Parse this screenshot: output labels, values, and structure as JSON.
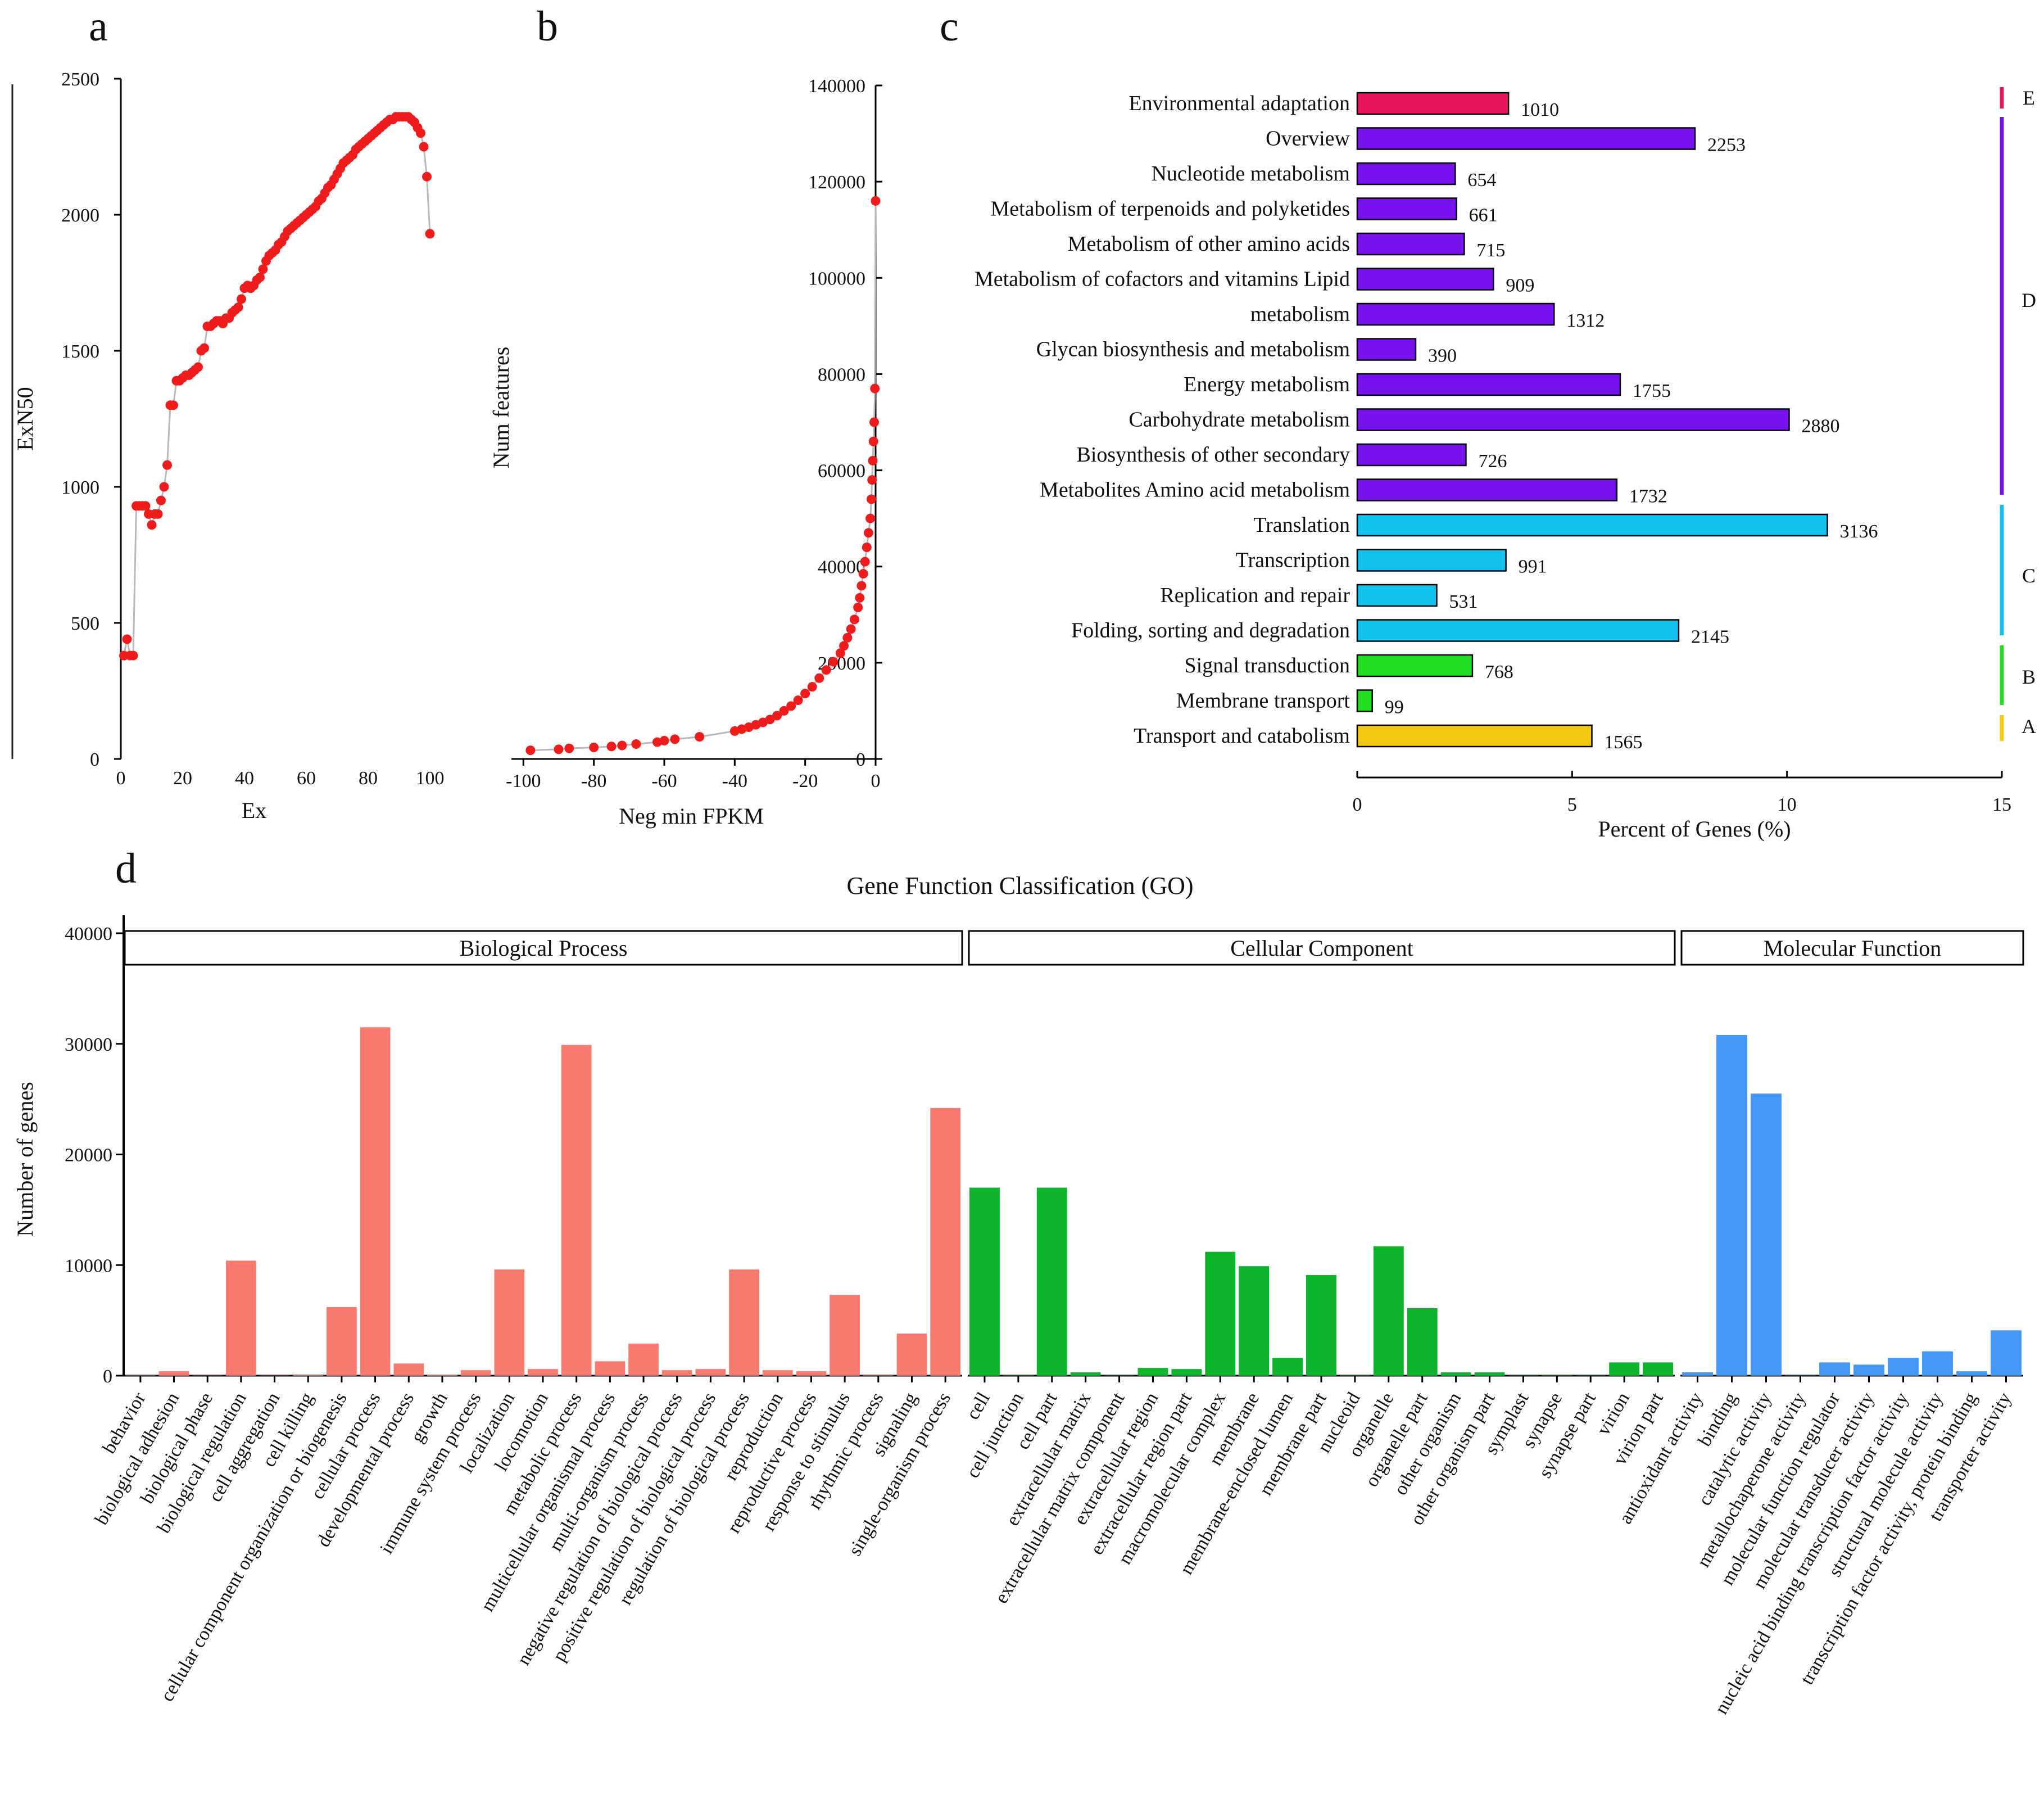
{
  "colors": {
    "red_point": "#ee1c1c",
    "curve_line": "#b9b9b9",
    "axis": "#000000",
    "cat_E": "#e8155f",
    "cat_D": "#7711ee",
    "cat_C": "#11c2ee",
    "cat_B": "#22dd22",
    "cat_A": "#f3c811",
    "go_bp": "#f87a6e",
    "go_cc": "#0db52a",
    "go_mf": "#4498f5"
  },
  "panels": {
    "a": "a",
    "b": "b",
    "c": "c",
    "d": "d"
  },
  "chart_data": [
    {
      "id": "a",
      "type": "scatter",
      "title": "",
      "xlabel": "Ex",
      "ylabel": "ExN50",
      "xlim": [
        0,
        100
      ],
      "ylim": [
        0,
        2500
      ],
      "xticks": [
        0,
        20,
        40,
        60,
        80,
        100
      ],
      "yticks": [
        0,
        500,
        1000,
        1500,
        2000,
        2500
      ],
      "x": [
        1,
        2,
        3,
        4,
        5,
        6,
        7,
        8,
        9,
        10,
        11,
        12,
        13,
        14,
        15,
        16,
        17,
        18,
        19,
        20,
        21,
        22,
        23,
        24,
        25,
        26,
        27,
        28,
        29,
        30,
        31,
        32,
        33,
        34,
        35,
        36,
        37,
        38,
        39,
        40,
        41,
        42,
        43,
        44,
        45,
        46,
        47,
        48,
        49,
        50,
        51,
        52,
        53,
        54,
        55,
        56,
        57,
        58,
        59,
        60,
        61,
        62,
        63,
        64,
        65,
        66,
        67,
        68,
        69,
        70,
        71,
        72,
        73,
        74,
        75,
        76,
        77,
        78,
        79,
        80,
        81,
        82,
        83,
        84,
        85,
        86,
        87,
        88,
        89,
        90,
        91,
        92,
        93,
        94,
        95,
        96,
        97,
        98,
        99,
        100
      ],
      "y": [
        380,
        440,
        380,
        380,
        930,
        930,
        930,
        930,
        900,
        860,
        900,
        900,
        950,
        1000,
        1080,
        1300,
        1300,
        1390,
        1390,
        1400,
        1410,
        1410,
        1420,
        1430,
        1440,
        1500,
        1510,
        1590,
        1590,
        1600,
        1610,
        1610,
        1600,
        1620,
        1620,
        1640,
        1650,
        1660,
        1690,
        1730,
        1740,
        1730,
        1740,
        1760,
        1770,
        1800,
        1830,
        1850,
        1860,
        1870,
        1890,
        1900,
        1920,
        1940,
        1950,
        1960,
        1970,
        1980,
        1990,
        2000,
        2010,
        2020,
        2030,
        2050,
        2060,
        2080,
        2100,
        2110,
        2130,
        2150,
        2170,
        2190,
        2200,
        2210,
        2220,
        2240,
        2250,
        2260,
        2270,
        2280,
        2290,
        2300,
        2310,
        2320,
        2330,
        2340,
        2350,
        2350,
        2360,
        2360,
        2360,
        2360,
        2360,
        2350,
        2340,
        2320,
        2300,
        2250,
        2140,
        1930
      ]
    },
    {
      "id": "b",
      "type": "scatter",
      "title": "",
      "xlabel": "Neg min FPKM",
      "ylabel": "Num features",
      "xlim": [
        -105,
        0
      ],
      "ylim": [
        0,
        140000
      ],
      "xticks": [
        -100,
        -80,
        -60,
        -40,
        -20,
        0
      ],
      "yticks": [
        0,
        20000,
        40000,
        60000,
        80000,
        100000,
        120000,
        140000
      ],
      "x": [
        -98,
        -90,
        -87,
        -80,
        -75,
        -72,
        -68,
        -62,
        -60,
        -57,
        -50,
        -40,
        -38,
        -36,
        -34,
        -32,
        -30,
        -28,
        -26,
        -24,
        -22,
        -20,
        -18,
        -16,
        -14,
        -12,
        -10,
        -9,
        -8,
        -7,
        -6,
        -5,
        -4.5,
        -4,
        -3.5,
        -3,
        -2.5,
        -2,
        -1.5,
        -1.2,
        -1,
        -0.8,
        -0.6,
        -0.4,
        -0.2,
        0
      ],
      "y": [
        1800,
        2000,
        2200,
        2400,
        2600,
        2800,
        3100,
        3500,
        3800,
        4100,
        4600,
        5800,
        6200,
        6600,
        7100,
        7600,
        8200,
        9000,
        10000,
        11000,
        12200,
        13600,
        15000,
        16800,
        18500,
        20200,
        22000,
        23500,
        25200,
        27000,
        29000,
        31500,
        33500,
        36000,
        38500,
        41000,
        44000,
        47000,
        50000,
        54000,
        58000,
        62000,
        66000,
        70000,
        77000,
        116000
      ]
    },
    {
      "id": "c",
      "type": "bar",
      "orientation": "horizontal",
      "xlabel": "Percent of Genes (%)",
      "xlim": [
        0,
        15
      ],
      "xticks": [
        0,
        5,
        10,
        15
      ],
      "categories": [
        "Environmental adaptation",
        "Overview",
        "Nucleotide metabolism",
        "Metabolism of terpenoids and polyketides",
        "Metabolism of other amino acids",
        "Metabolism of cofactors and vitamins Lipid",
        "metabolism",
        "Glycan biosynthesis and metabolism",
        "Energy metabolism",
        "Carbohydrate metabolism",
        "Biosynthesis of other secondary",
        "Metabolites Amino acid metabolism",
        "Translation",
        "Transcription",
        "Replication and repair",
        "Folding, sorting and degradation",
        "Signal transduction",
        "Membrane transport",
        "Transport and catabolism"
      ],
      "counts": [
        1010,
        2253,
        654,
        661,
        715,
        909,
        1312,
        390,
        1755,
        2880,
        726,
        1732,
        3136,
        991,
        531,
        2145,
        768,
        99,
        1565
      ],
      "values": [
        3.52,
        7.86,
        2.28,
        2.31,
        2.49,
        3.17,
        4.58,
        1.36,
        6.12,
        10.05,
        2.53,
        6.04,
        10.94,
        3.46,
        1.85,
        7.48,
        2.68,
        0.35,
        5.46
      ],
      "groups": [
        "E",
        "D",
        "D",
        "D",
        "D",
        "D",
        "D",
        "D",
        "D",
        "D",
        "D",
        "D",
        "C",
        "C",
        "C",
        "C",
        "B",
        "B",
        "A"
      ],
      "group_labels": [
        "E",
        "D",
        "C",
        "B",
        "A"
      ]
    },
    {
      "id": "d",
      "type": "bar",
      "title": "Gene Function Classification (GO)",
      "ylabel": "Number of genes",
      "ylim": [
        0,
        40000
      ],
      "yticks": [
        0,
        10000,
        20000,
        30000,
        40000
      ],
      "facets": [
        "Biological Process",
        "Cellular Component",
        "Molecular Function"
      ],
      "series": [
        {
          "name": "Biological Process",
          "categories": [
            "behavior",
            "biological adhesion",
            "biological phase",
            "biological regulation",
            "cell aggregation",
            "cell killing",
            "cellular component organization or biogenesis",
            "cellular process",
            "developmental process",
            "growth",
            "immune system process",
            "localization",
            "locomotion",
            "metabolic process",
            "multicellular organismal process",
            "multi-organism process",
            "negative regulation of biological process",
            "positive regulation of biological process",
            "regulation of biological process",
            "reproduction",
            "reproductive process",
            "response to stimulus",
            "rhythmic process",
            "signaling",
            "single-organism process"
          ],
          "values": [
            30,
            400,
            20,
            10400,
            20,
            50,
            6200,
            31500,
            1100,
            60,
            500,
            9600,
            600,
            29900,
            1300,
            2900,
            500,
            600,
            9600,
            500,
            400,
            7300,
            40,
            3800,
            24200
          ]
        },
        {
          "name": "Cellular Component",
          "categories": [
            "cell",
            "cell junction",
            "cell part",
            "extracellular matrix",
            "extracellular matrix component",
            "extracellular region",
            "extracellular region part",
            "macromolecular complex",
            "membrane",
            "membrane-enclosed lumen",
            "membrane part",
            "nucleoid",
            "organelle",
            "organelle part",
            "other organism",
            "other organism part",
            "symplast",
            "synapse",
            "synapse part",
            "virion",
            "virion part"
          ],
          "values": [
            17000,
            30,
            17000,
            300,
            20,
            700,
            600,
            11200,
            9900,
            1600,
            9100,
            30,
            11700,
            6100,
            300,
            300,
            20,
            30,
            20,
            1200,
            1200
          ]
        },
        {
          "name": "Molecular Function",
          "categories": [
            "antioxidant activity",
            "binding",
            "catalytic activity",
            "metallochaperone activity",
            "molecular function regulator",
            "molecular transducer activity",
            "nucleic acid binding transcription factor activity",
            "structural molecule activity",
            "transcription factor activity, protein binding",
            "transporter activity"
          ],
          "values": [
            300,
            30800,
            25500,
            20,
            1200,
            1000,
            1600,
            2200,
            400,
            4100
          ]
        }
      ]
    }
  ]
}
